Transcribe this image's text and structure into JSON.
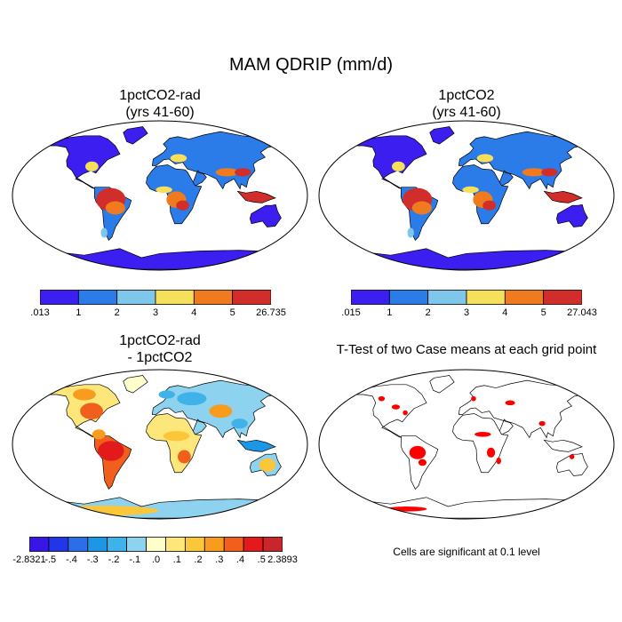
{
  "figure": {
    "title": "MAM QDRIP (mm/d)",
    "note": "Cells are significant at 0.1 level"
  },
  "panels": [
    {
      "id": "p1",
      "title_line1": "1pctCO2-rad",
      "title_line2": "(yrs 41-60)"
    },
    {
      "id": "p2",
      "title_line1": "1pctCO2",
      "title_line2": "(yrs 41-60)"
    },
    {
      "id": "p3",
      "title_line1": "1pctCO2-rad",
      "title_line2": "- 1pctCO2"
    },
    {
      "id": "p4",
      "title_line1": "T-Test of two Case means at each grid point",
      "title_line2": ""
    }
  ],
  "colorbars": {
    "cb1": {
      "colors": [
        "#3d1ef0",
        "#2b7be8",
        "#7ec6ea",
        "#f6df5a",
        "#f07a1e",
        "#d12d2a"
      ],
      "labels": [
        ".013",
        "1",
        "2",
        "3",
        "4",
        "5",
        "26.735"
      ]
    },
    "cb2": {
      "colors": [
        "#3d1ef0",
        "#2b7be8",
        "#7ec6ea",
        "#f6df5a",
        "#f07a1e",
        "#d12d2a"
      ],
      "labels": [
        ".015",
        "1",
        "2",
        "3",
        "4",
        "5",
        "27.043"
      ]
    },
    "cb3": {
      "colors": [
        "#3a16e6",
        "#2236e8",
        "#2a6fe6",
        "#1e96e6",
        "#3fb2ea",
        "#8dd2ee",
        "#ffffcc",
        "#fde77a",
        "#fbc63a",
        "#f99b1c",
        "#f0601c",
        "#e31a1c",
        "#c8262a"
      ],
      "labels": [
        "-2.8321",
        "-.5",
        "-.4",
        "-.3",
        "-.2",
        "-.1",
        ".0",
        ".1",
        ".2",
        ".3",
        ".4",
        ".5",
        "2.3893"
      ]
    }
  },
  "map_colors": {
    "ocean": "#ffffff",
    "significant": "#ff0000",
    "coast": "#000000"
  }
}
